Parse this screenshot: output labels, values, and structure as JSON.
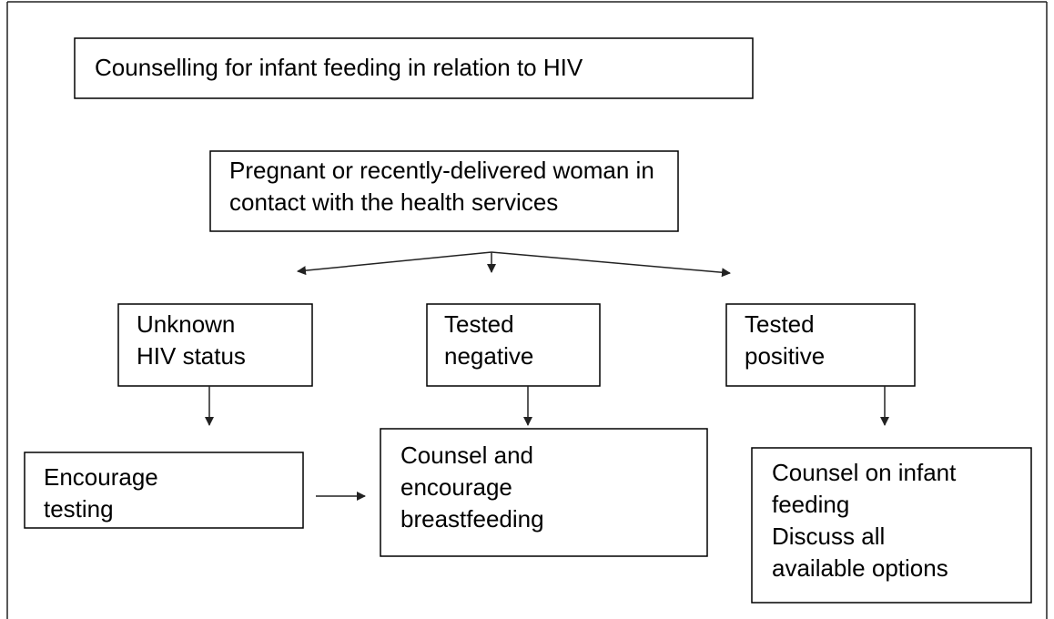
{
  "title": {
    "lines": [
      "Counselling for infant feeding in relation to HIV"
    ]
  },
  "nodes": [
    {
      "lines": [
        "Pregnant or recently-delivered woman in",
        "contact with the health services"
      ]
    },
    {
      "lines": [
        "Unknown",
        "HIV status"
      ]
    },
    {
      "lines": [
        "Tested",
        "negative"
      ]
    },
    {
      "lines": [
        "Tested",
        "positive"
      ]
    },
    {
      "lines": [
        "Encourage",
        "testing"
      ]
    },
    {
      "lines": [
        "Counsel and",
        "encourage",
        "breastfeeding"
      ]
    },
    {
      "lines": [
        "Counsel on infant",
        "feeding",
        "Discuss all",
        "available options"
      ]
    }
  ]
}
